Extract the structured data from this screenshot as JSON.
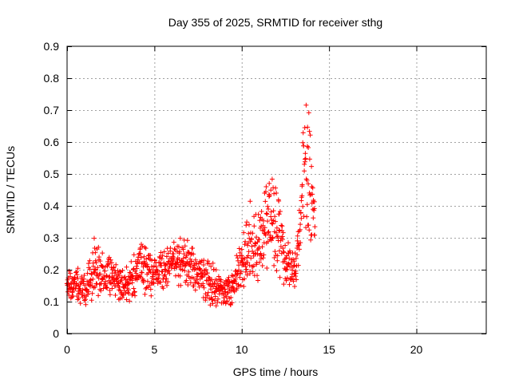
{
  "chart_data": {
    "type": "scatter",
    "title": "Day 355 of 2025, SRMTID for receiver sthg",
    "xlabel": "GPS time / hours",
    "ylabel": "SRMTID / TECUs",
    "xlim": [
      0,
      24
    ],
    "ylim": [
      0,
      0.9
    ],
    "xticks": [
      0,
      5,
      10,
      15,
      20
    ],
    "xtick_labels": [
      "0",
      "5",
      "10",
      "15",
      "20"
    ],
    "yticks": [
      0,
      0.1,
      0.2,
      0.3,
      0.4,
      0.5,
      0.6,
      0.7,
      0.8,
      0.9
    ],
    "ytick_labels": [
      "0",
      "0.1",
      "0.2",
      "0.3",
      "0.4",
      "0.5",
      "0.6",
      "0.7",
      "0.8",
      "0.9"
    ],
    "grid": true,
    "marker": "+",
    "series": [
      {
        "name": "SRMTID",
        "color": "#ff0000",
        "envelope": [
          {
            "t": 0.0,
            "center": 0.16,
            "spread": 0.06
          },
          {
            "t": 0.5,
            "center": 0.15,
            "spread": 0.07
          },
          {
            "t": 1.0,
            "center": 0.14,
            "spread": 0.06
          },
          {
            "t": 1.5,
            "center": 0.2,
            "spread": 0.12
          },
          {
            "t": 2.0,
            "center": 0.18,
            "spread": 0.08
          },
          {
            "t": 2.5,
            "center": 0.17,
            "spread": 0.08
          },
          {
            "t": 3.0,
            "center": 0.16,
            "spread": 0.06
          },
          {
            "t": 3.5,
            "center": 0.15,
            "spread": 0.06
          },
          {
            "t": 4.0,
            "center": 0.2,
            "spread": 0.09
          },
          {
            "t": 4.5,
            "center": 0.2,
            "spread": 0.08
          },
          {
            "t": 5.0,
            "center": 0.19,
            "spread": 0.08
          },
          {
            "t": 5.5,
            "center": 0.2,
            "spread": 0.08
          },
          {
            "t": 6.0,
            "center": 0.22,
            "spread": 0.07
          },
          {
            "t": 6.5,
            "center": 0.23,
            "spread": 0.09
          },
          {
            "t": 7.0,
            "center": 0.22,
            "spread": 0.08
          },
          {
            "t": 7.5,
            "center": 0.19,
            "spread": 0.07
          },
          {
            "t": 8.0,
            "center": 0.17,
            "spread": 0.08
          },
          {
            "t": 8.5,
            "center": 0.15,
            "spread": 0.08
          },
          {
            "t": 9.0,
            "center": 0.13,
            "spread": 0.05
          },
          {
            "t": 9.5,
            "center": 0.14,
            "spread": 0.06
          },
          {
            "t": 10.0,
            "center": 0.22,
            "spread": 0.11
          },
          {
            "t": 10.5,
            "center": 0.3,
            "spread": 0.14
          },
          {
            "t": 11.0,
            "center": 0.26,
            "spread": 0.12
          },
          {
            "t": 11.5,
            "center": 0.38,
            "spread": 0.2
          },
          {
            "t": 12.0,
            "center": 0.33,
            "spread": 0.17
          },
          {
            "t": 12.5,
            "center": 0.22,
            "spread": 0.08
          },
          {
            "t": 13.0,
            "center": 0.2,
            "spread": 0.07
          },
          {
            "t": 13.3,
            "center": 0.3,
            "spread": 0.12
          },
          {
            "t": 13.6,
            "center": 0.55,
            "spread": 0.3
          },
          {
            "t": 13.9,
            "center": 0.48,
            "spread": 0.25
          },
          {
            "t": 14.2,
            "center": 0.35,
            "spread": 0.08
          }
        ],
        "n_points": 1000
      }
    ]
  }
}
